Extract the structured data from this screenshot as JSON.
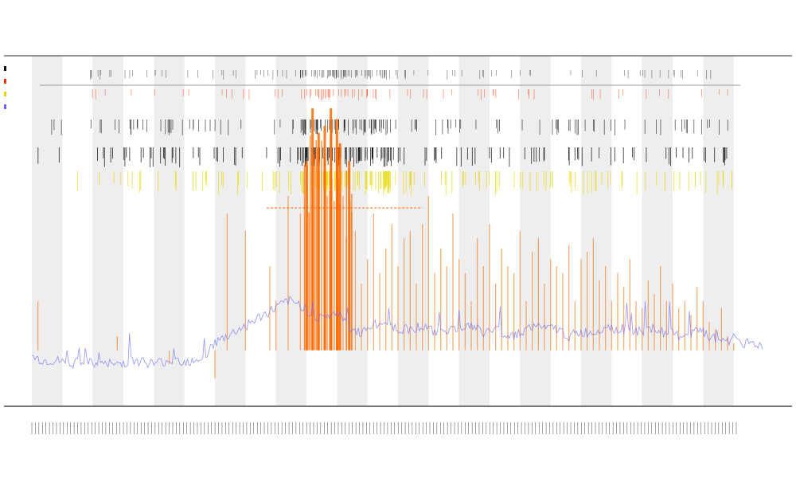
{
  "chart_data": {
    "type": "line",
    "title": "",
    "subtitles": [
      "",
      ""
    ],
    "xlabel": "",
    "ylabel": "",
    "grid": false,
    "legend_position": "top-left",
    "legend": [
      {
        "name": "",
        "color": "#111111"
      },
      {
        "name": "",
        "color": "#ff3300"
      },
      {
        "name": "",
        "color": "#f0d000"
      },
      {
        "name": "",
        "color": "#6666ff"
      }
    ],
    "colors": {
      "band": "#eeeeee",
      "baseline": "#6666ff",
      "spike": "#ff6a00",
      "tick": "#111111",
      "red_tick": "#ff3300",
      "yellow_tick": "#e6d800"
    },
    "x_range": [
      0,
      240
    ],
    "y_range": [
      0,
      100
    ],
    "series": [
      {
        "type": "baseline",
        "x": [
          0,
          4,
          8,
          12,
          16,
          20,
          24,
          28,
          32,
          36,
          40,
          44,
          48,
          52,
          56,
          60,
          64,
          68,
          72,
          76,
          80,
          84,
          88,
          92,
          96,
          100,
          104,
          108,
          112,
          116,
          120,
          124,
          128,
          132,
          136,
          140,
          144,
          148,
          152,
          156,
          160,
          164,
          168,
          172,
          176,
          180,
          184,
          188,
          192,
          196,
          200,
          204,
          208,
          212,
          216,
          220,
          224,
          228,
          232,
          236,
          240
        ],
        "values": [
          14,
          13,
          13,
          12,
          13,
          12,
          12,
          12,
          13,
          13,
          12,
          13,
          13,
          13,
          14,
          18,
          20,
          22,
          24,
          26,
          28,
          30,
          29,
          26,
          25,
          27,
          22,
          21,
          23,
          24,
          22,
          22,
          23,
          21,
          22,
          22,
          23,
          21,
          22,
          20,
          21,
          23,
          22,
          22,
          20,
          21,
          21,
          23,
          22,
          22,
          21,
          22,
          21,
          20,
          21,
          21,
          19,
          19,
          18,
          18,
          17
        ]
      },
      {
        "type": "spikes",
        "x": [
          2,
          28,
          45,
          60,
          64,
          70,
          78,
          80,
          84,
          88,
          90,
          92,
          94,
          96,
          98,
          100,
          101,
          102,
          103,
          104,
          106,
          108,
          110,
          112,
          114,
          116,
          118,
          120,
          122,
          124,
          126,
          128,
          130,
          132,
          134,
          136,
          138,
          140,
          142,
          144,
          146,
          148,
          150,
          152,
          154,
          156,
          158,
          160,
          162,
          164,
          166,
          168,
          170,
          172,
          174,
          176,
          178,
          180,
          182,
          184,
          186,
          188,
          190,
          192,
          194,
          196,
          198,
          200,
          202,
          204,
          206,
          208,
          210,
          212,
          214,
          216,
          218,
          220,
          222,
          224,
          226,
          228,
          230
        ],
        "values": [
          30,
          20,
          12,
          8,
          55,
          50,
          40,
          30,
          60,
          55,
          70,
          85,
          78,
          80,
          85,
          82,
          75,
          60,
          48,
          70,
          50,
          35,
          42,
          55,
          38,
          45,
          52,
          40,
          48,
          50,
          35,
          52,
          60,
          38,
          45,
          40,
          55,
          42,
          38,
          30,
          48,
          40,
          52,
          35,
          45,
          40,
          38,
          50,
          30,
          44,
          48,
          35,
          42,
          40,
          38,
          46,
          30,
          42,
          44,
          48,
          36,
          40,
          30,
          38,
          34,
          42,
          30,
          28,
          36,
          32,
          40,
          30,
          35,
          28,
          30,
          26,
          34,
          30,
          24,
          22,
          28,
          20,
          18
        ]
      }
    ]
  }
}
